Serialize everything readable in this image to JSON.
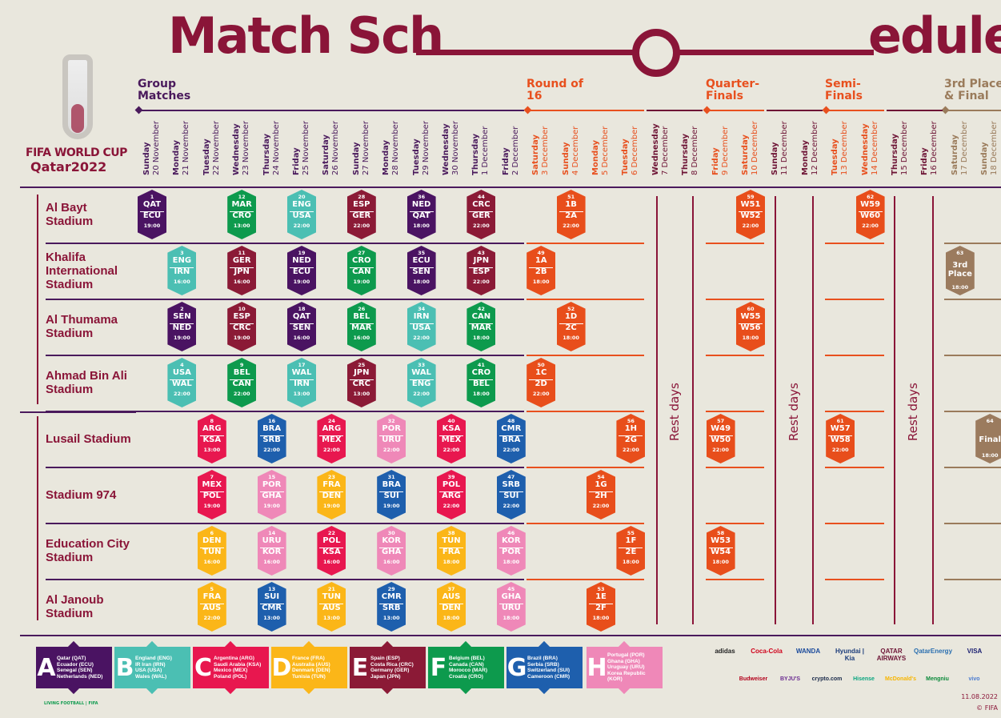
{
  "title": {
    "part1": "Match Sch",
    "part2": "edule"
  },
  "logo": {
    "line1": "FIFA WORLD CUP",
    "line2": "Qatar2022"
  },
  "phases": [
    {
      "label": "Group Matches",
      "color": "#4a1a5c"
    },
    {
      "label": "Round of 16",
      "color": "#e8501e"
    },
    {
      "label": "Quarter-Finals",
      "color": "#e8501e"
    },
    {
      "label": "Semi-Finals",
      "color": "#e8501e"
    },
    {
      "label": "3rd Place & Final",
      "color": "#9a7b5b"
    }
  ],
  "dates": [
    {
      "day": "Sunday",
      "date": "20 November",
      "color": "#4a1a5c"
    },
    {
      "day": "Monday",
      "date": "21 November",
      "color": "#4a1a5c"
    },
    {
      "day": "Tuesday",
      "date": "22 November",
      "color": "#4a1a5c"
    },
    {
      "day": "Wednesday",
      "date": "23 November",
      "color": "#4a1a5c"
    },
    {
      "day": "Thursday",
      "date": "24 November",
      "color": "#4a1a5c"
    },
    {
      "day": "Friday",
      "date": "25 November",
      "color": "#4a1a5c"
    },
    {
      "day": "Saturday",
      "date": "26 November",
      "color": "#4a1a5c"
    },
    {
      "day": "Sunday",
      "date": "27 November",
      "color": "#4a1a5c"
    },
    {
      "day": "Monday",
      "date": "28 November",
      "color": "#4a1a5c"
    },
    {
      "day": "Tuesday",
      "date": "29 November",
      "color": "#4a1a5c"
    },
    {
      "day": "Wednesday",
      "date": "30 November",
      "color": "#4a1a5c"
    },
    {
      "day": "Thursday",
      "date": "1 December",
      "color": "#4a1a5c"
    },
    {
      "day": "Friday",
      "date": "2 December",
      "color": "#4a1a5c"
    },
    {
      "day": "Saturday",
      "date": "3 December",
      "color": "#e8501e"
    },
    {
      "day": "Sunday",
      "date": "4 December",
      "color": "#e8501e"
    },
    {
      "day": "Monday",
      "date": "5 December",
      "color": "#e8501e"
    },
    {
      "day": "Tuesday",
      "date": "6 December",
      "color": "#e8501e"
    },
    {
      "day": "Wednesday",
      "date": "7 December",
      "color": "#6e1536"
    },
    {
      "day": "Thursday",
      "date": "8 December",
      "color": "#6e1536"
    },
    {
      "day": "Friday",
      "date": "9 December",
      "color": "#e8501e"
    },
    {
      "day": "Saturday",
      "date": "10 December",
      "color": "#e8501e"
    },
    {
      "day": "Sunday",
      "date": "11 December",
      "color": "#6e1536"
    },
    {
      "day": "Monday",
      "date": "12 December",
      "color": "#6e1536"
    },
    {
      "day": "Tuesday",
      "date": "13 December",
      "color": "#e8501e"
    },
    {
      "day": "Wednesday",
      "date": "14 December",
      "color": "#e8501e"
    },
    {
      "day": "Thursday",
      "date": "15 December",
      "color": "#6e1536"
    },
    {
      "day": "Friday",
      "date": "16 December",
      "color": "#6e1536"
    },
    {
      "day": "Saturday",
      "date": "17 December",
      "color": "#9a7b5b"
    },
    {
      "day": "Sunday",
      "date": "18 December",
      "color": "#9a7b5b"
    }
  ],
  "stadiums": [
    "Al Bayt Stadium",
    "Khalifa International Stadium",
    "Al Thumama Stadium",
    "Ahmad Bin Ali Stadium",
    "Lusail Stadium",
    "Stadium 974",
    "Education City Stadium",
    "Al Janoub Stadium"
  ],
  "rest_label": "Rest days",
  "versus": "v.",
  "colors": {
    "A": "#4a1362",
    "B": "#4bbfb3",
    "C": "#e8174f",
    "D": "#fbb618",
    "E": "#8b1a36",
    "F": "#0d9a4d",
    "G": "#1e5fad",
    "H": "#ef88b8",
    "KO": "#e84e1b",
    "FIN": "#9b7b5e"
  },
  "matches": [
    {
      "n": "1",
      "date": "20 November",
      "s": 0,
      "h": "QAT",
      "a": "ECU",
      "t": "19:00",
      "g": "A"
    },
    {
      "n": "12",
      "date": "23 November",
      "s": 0,
      "h": "MAR",
      "a": "CRO",
      "t": "13:00",
      "g": "F"
    },
    {
      "n": "20",
      "date": "25 November",
      "s": 0,
      "h": "ENG",
      "a": "USA",
      "t": "22:00",
      "g": "B"
    },
    {
      "n": "28",
      "date": "27 November",
      "s": 0,
      "h": "ESP",
      "a": "GER",
      "t": "22:00",
      "g": "E"
    },
    {
      "n": "36",
      "date": "29 November",
      "s": 0,
      "h": "NED",
      "a": "QAT",
      "t": "18:00",
      "g": "A"
    },
    {
      "n": "44",
      "date": "1 December",
      "s": 0,
      "h": "CRC",
      "a": "GER",
      "t": "22:00",
      "g": "E"
    },
    {
      "n": "51",
      "date": "4 December",
      "s": 0,
      "h": "1B",
      "a": "2A",
      "t": "22:00",
      "g": "KO"
    },
    {
      "n": "59",
      "date": "10 December",
      "s": 0,
      "h": "W51",
      "a": "W52",
      "t": "22:00",
      "g": "KO"
    },
    {
      "n": "62",
      "date": "14 December",
      "s": 0,
      "h": "W59",
      "a": "W60",
      "t": "22:00",
      "g": "KO"
    },
    {
      "n": "3",
      "date": "21 November",
      "s": 1,
      "h": "ENG",
      "a": "IRN",
      "t": "16:00",
      "g": "B"
    },
    {
      "n": "11",
      "date": "23 November",
      "s": 1,
      "h": "GER",
      "a": "JPN",
      "t": "16:00",
      "g": "E"
    },
    {
      "n": "19",
      "date": "25 November",
      "s": 1,
      "h": "NED",
      "a": "ECU",
      "t": "19:00",
      "g": "A"
    },
    {
      "n": "27",
      "date": "27 November",
      "s": 1,
      "h": "CRO",
      "a": "CAN",
      "t": "19:00",
      "g": "F"
    },
    {
      "n": "35",
      "date": "29 November",
      "s": 1,
      "h": "ECU",
      "a": "SEN",
      "t": "18:00",
      "g": "A"
    },
    {
      "n": "43",
      "date": "1 December",
      "s": 1,
      "h": "JPN",
      "a": "ESP",
      "t": "22:00",
      "g": "E"
    },
    {
      "n": "49",
      "date": "3 December",
      "s": 1,
      "h": "1A",
      "a": "2B",
      "t": "18:00",
      "g": "KO"
    },
    {
      "n": "63",
      "date": "17 December",
      "s": 1,
      "label": "3rd Place",
      "t": "18:00",
      "g": "FIN"
    },
    {
      "n": "2",
      "date": "21 November",
      "s": 2,
      "h": "SEN",
      "a": "NED",
      "t": "19:00",
      "g": "A"
    },
    {
      "n": "10",
      "date": "23 November",
      "s": 2,
      "h": "ESP",
      "a": "CRC",
      "t": "19:00",
      "g": "E"
    },
    {
      "n": "18",
      "date": "25 November",
      "s": 2,
      "h": "QAT",
      "a": "SEN",
      "t": "16:00",
      "g": "A"
    },
    {
      "n": "26",
      "date": "27 November",
      "s": 2,
      "h": "BEL",
      "a": "MAR",
      "t": "16:00",
      "g": "F"
    },
    {
      "n": "34",
      "date": "29 November",
      "s": 2,
      "h": "IRN",
      "a": "USA",
      "t": "22:00",
      "g": "B"
    },
    {
      "n": "42",
      "date": "1 December",
      "s": 2,
      "h": "CAN",
      "a": "MAR",
      "t": "18:00",
      "g": "F"
    },
    {
      "n": "52",
      "date": "4 December",
      "s": 2,
      "h": "1D",
      "a": "2C",
      "t": "18:00",
      "g": "KO"
    },
    {
      "n": "60",
      "date": "10 December",
      "s": 2,
      "h": "W55",
      "a": "W56",
      "t": "18:00",
      "g": "KO"
    },
    {
      "n": "4",
      "date": "21 November",
      "s": 3,
      "h": "USA",
      "a": "WAL",
      "t": "22:00",
      "g": "B"
    },
    {
      "n": "9",
      "date": "23 November",
      "s": 3,
      "h": "BEL",
      "a": "CAN",
      "t": "22:00",
      "g": "F"
    },
    {
      "n": "17",
      "date": "25 November",
      "s": 3,
      "h": "WAL",
      "a": "IRN",
      "t": "13:00",
      "g": "B"
    },
    {
      "n": "25",
      "date": "27 November",
      "s": 3,
      "h": "JPN",
      "a": "CRC",
      "t": "13:00",
      "g": "E"
    },
    {
      "n": "33",
      "date": "29 November",
      "s": 3,
      "h": "WAL",
      "a": "ENG",
      "t": "22:00",
      "g": "B"
    },
    {
      "n": "41",
      "date": "1 December",
      "s": 3,
      "h": "CRO",
      "a": "BEL",
      "t": "18:00",
      "g": "F"
    },
    {
      "n": "50",
      "date": "3 December",
      "s": 3,
      "h": "1C",
      "a": "2D",
      "t": "22:00",
      "g": "KO"
    },
    {
      "n": "8",
      "date": "22 November",
      "s": 4,
      "h": "ARG",
      "a": "KSA",
      "t": "13:00",
      "g": "C"
    },
    {
      "n": "16",
      "date": "24 November",
      "s": 4,
      "h": "BRA",
      "a": "SRB",
      "t": "22:00",
      "g": "G"
    },
    {
      "n": "24",
      "date": "26 November",
      "s": 4,
      "h": "ARG",
      "a": "MEX",
      "t": "22:00",
      "g": "C"
    },
    {
      "n": "32",
      "date": "28 November",
      "s": 4,
      "h": "POR",
      "a": "URU",
      "t": "22:00",
      "g": "H"
    },
    {
      "n": "40",
      "date": "30 November",
      "s": 4,
      "h": "KSA",
      "a": "MEX",
      "t": "22:00",
      "g": "C"
    },
    {
      "n": "48",
      "date": "2 December",
      "s": 4,
      "h": "CMR",
      "a": "BRA",
      "t": "22:00",
      "g": "G"
    },
    {
      "n": "56",
      "date": "6 December",
      "s": 4,
      "h": "1H",
      "a": "2G",
      "t": "22:00",
      "g": "KO"
    },
    {
      "n": "57",
      "date": "9 December",
      "s": 4,
      "h": "W49",
      "a": "W50",
      "t": "22:00",
      "g": "KO"
    },
    {
      "n": "61",
      "date": "13 December",
      "s": 4,
      "h": "W57",
      "a": "W58",
      "t": "22:00",
      "g": "KO"
    },
    {
      "n": "64",
      "date": "18 December",
      "s": 4,
      "label": "Final",
      "t": "18:00",
      "g": "FIN"
    },
    {
      "n": "7",
      "date": "22 November",
      "s": 5,
      "h": "MEX",
      "a": "POL",
      "t": "19:00",
      "g": "C"
    },
    {
      "n": "15",
      "date": "24 November",
      "s": 5,
      "h": "POR",
      "a": "GHA",
      "t": "19:00",
      "g": "H"
    },
    {
      "n": "23",
      "date": "26 November",
      "s": 5,
      "h": "FRA",
      "a": "DEN",
      "t": "19:00",
      "g": "D"
    },
    {
      "n": "31",
      "date": "28 November",
      "s": 5,
      "h": "BRA",
      "a": "SUI",
      "t": "19:00",
      "g": "G"
    },
    {
      "n": "39",
      "date": "30 November",
      "s": 5,
      "h": "POL",
      "a": "ARG",
      "t": "22:00",
      "g": "C"
    },
    {
      "n": "47",
      "date": "2 December",
      "s": 5,
      "h": "SRB",
      "a": "SUI",
      "t": "22:00",
      "g": "G"
    },
    {
      "n": "54",
      "date": "5 December",
      "s": 5,
      "h": "1G",
      "a": "2H",
      "t": "22:00",
      "g": "KO"
    },
    {
      "n": "6",
      "date": "22 November",
      "s": 6,
      "h": "DEN",
      "a": "TUN",
      "t": "16:00",
      "g": "D"
    },
    {
      "n": "14",
      "date": "24 November",
      "s": 6,
      "h": "URU",
      "a": "KOR",
      "t": "16:00",
      "g": "H"
    },
    {
      "n": "22",
      "date": "26 November",
      "s": 6,
      "h": "POL",
      "a": "KSA",
      "t": "16:00",
      "g": "C"
    },
    {
      "n": "30",
      "date": "28 November",
      "s": 6,
      "h": "KOR",
      "a": "GHA",
      "t": "16:00",
      "g": "H"
    },
    {
      "n": "38",
      "date": "30 November",
      "s": 6,
      "h": "TUN",
      "a": "FRA",
      "t": "18:00",
      "g": "D"
    },
    {
      "n": "46",
      "date": "2 December",
      "s": 6,
      "h": "KOR",
      "a": "POR",
      "t": "18:00",
      "g": "H"
    },
    {
      "n": "55",
      "date": "6 December",
      "s": 6,
      "h": "1F",
      "a": "2E",
      "t": "18:00",
      "g": "KO"
    },
    {
      "n": "58",
      "date": "9 December",
      "s": 6,
      "h": "W53",
      "a": "W54",
      "t": "18:00",
      "g": "KO"
    },
    {
      "n": "5",
      "date": "22 November",
      "s": 7,
      "h": "FRA",
      "a": "AUS",
      "t": "22:00",
      "g": "D"
    },
    {
      "n": "13",
      "date": "24 November",
      "s": 7,
      "h": "SUI",
      "a": "CMR",
      "t": "13:00",
      "g": "G"
    },
    {
      "n": "21",
      "date": "26 November",
      "s": 7,
      "h": "TUN",
      "a": "AUS",
      "t": "13:00",
      "g": "D"
    },
    {
      "n": "29",
      "date": "28 November",
      "s": 7,
      "h": "CMR",
      "a": "SRB",
      "t": "13:00",
      "g": "G"
    },
    {
      "n": "37",
      "date": "30 November",
      "s": 7,
      "h": "AUS",
      "a": "DEN",
      "t": "18:00",
      "g": "D"
    },
    {
      "n": "45",
      "date": "2 December",
      "s": 7,
      "h": "GHA",
      "a": "URU",
      "t": "18:00",
      "g": "H"
    },
    {
      "n": "53",
      "date": "5 December",
      "s": 7,
      "h": "1E",
      "a": "2F",
      "t": "18:00",
      "g": "KO"
    }
  ],
  "groups": [
    {
      "letter": "A",
      "teams": [
        "Qatar (QAT)",
        "Ecuador (ECU)",
        "Senegal (SEN)",
        "Netherlands (NED)"
      ]
    },
    {
      "letter": "B",
      "teams": [
        "England (ENG)",
        "IR Iran (IRN)",
        "USA (USA)",
        "Wales (WAL)"
      ]
    },
    {
      "letter": "C",
      "teams": [
        "Argentina (ARG)",
        "Saudi Arabia (KSA)",
        "Mexico (MEX)",
        "Poland (POL)"
      ]
    },
    {
      "letter": "D",
      "teams": [
        "France (FRA)",
        "Australia (AUS)",
        "Denmark (DEN)",
        "Tunisia (TUN)"
      ]
    },
    {
      "letter": "E",
      "teams": [
        "Spain (ESP)",
        "Costa Rica (CRC)",
        "Germany (GER)",
        "Japan (JPN)"
      ]
    },
    {
      "letter": "F",
      "teams": [
        "Belgium (BEL)",
        "Canada (CAN)",
        "Morocco (MAR)",
        "Croatia (CRO)"
      ]
    },
    {
      "letter": "G",
      "teams": [
        "Brazil (BRA)",
        "Serbia (SRB)",
        "Switzerland (SUI)",
        "Cameroon (CMR)"
      ]
    },
    {
      "letter": "H",
      "teams": [
        "Portugal (POR)",
        "Ghana (GHA)",
        "Uruguay (URU)",
        "Korea Republic (KOR)"
      ]
    }
  ],
  "sponsors_row1": [
    "adidas",
    "Coca-Cola",
    "WANDA",
    "Hyundai | Kia",
    "QATAR AIRWAYS",
    "QatarEnergy",
    "VISA"
  ],
  "sponsors_row2": [
    "Budweiser",
    "BYJU'S",
    "crypto.com",
    "Hisense",
    "McDonald's",
    "Mengniu",
    "vivo"
  ],
  "footer": {
    "date": "11.08.2022",
    "copyright": "© FIFA",
    "brand": "LIVING FOOTBALL | FIFA"
  }
}
